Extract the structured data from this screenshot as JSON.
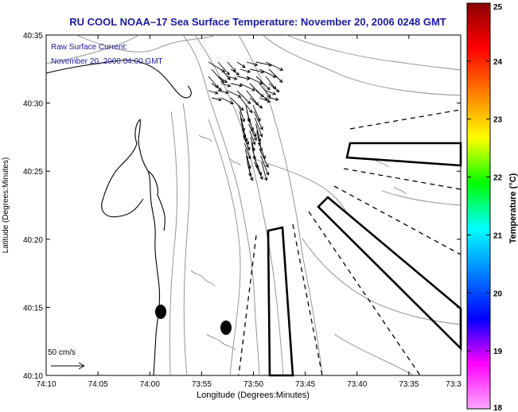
{
  "title": "RU COOL  NOAA–17  Sea Surface Temperature:  November 20, 2006 0248 GMT",
  "current_label_line1": "Raw Surface Current:",
  "current_label_line2": "November 20, 2006 04:00 GMT",
  "scale_label": "50 cm/s",
  "x_axis": {
    "label": "Longitude (Degrees:Minutes)",
    "ticks": [
      "74:10",
      "74:05",
      "74:00",
      "73:55",
      "73:50",
      "73:45",
      "73:40",
      "73:35",
      "73:3"
    ]
  },
  "y_axis": {
    "label": "Latitude (Degrees:Minutes)",
    "ticks": [
      "40:35",
      "40:30",
      "40:25",
      "40:20",
      "40:15",
      "40:10"
    ]
  },
  "colorbar": {
    "label": "Temperature (°C)",
    "ticks": [
      "25",
      "24",
      "23",
      "22",
      "21",
      "20",
      "19",
      "18"
    ],
    "colors": [
      "#8b0000",
      "#ff0000",
      "#ff8000",
      "#ffff00",
      "#00ff00",
      "#00ffff",
      "#0080ff",
      "#0000ff",
      "#ff00ff",
      "#ffaaff"
    ]
  },
  "colors": {
    "title": "#1a1a99",
    "map_lines": "#000000",
    "bathymetry": "#888888"
  }
}
